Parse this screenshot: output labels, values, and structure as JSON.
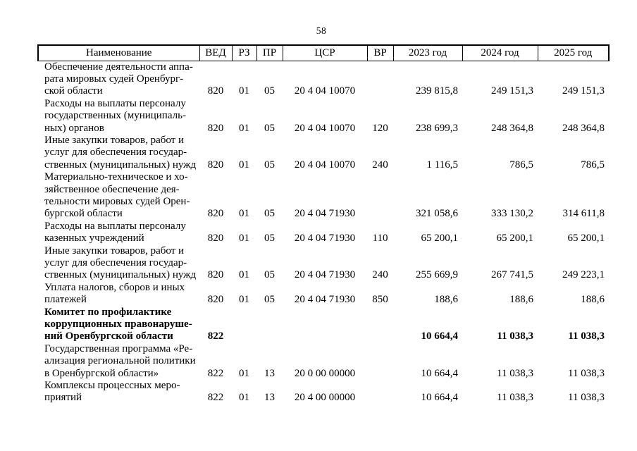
{
  "page": {
    "number": "58"
  },
  "colors": {
    "text": "#000000",
    "background": "#ffffff",
    "border": "#000000"
  },
  "table": {
    "headers": {
      "name": "Наименование",
      "ved": "ВЕД",
      "rz": "РЗ",
      "pr": "ПР",
      "csr": "ЦСР",
      "vr": "ВР",
      "y2023": "2023 год",
      "y2024": "2024 год",
      "y2025": "2025 год"
    },
    "rows": [
      {
        "name": "Обеспечение деятельности аппа-\nрата мировых судей Оренбург-\nской области",
        "ved": "820",
        "rz": "01",
        "pr": "05",
        "csr": "20 4 04 10070",
        "vr": "",
        "y2023": "239 815,8",
        "y2024": "249 151,3",
        "y2025": "249 151,3",
        "bold": false
      },
      {
        "name": "Расходы на выплаты персоналу\nгосударственных (муниципаль-\nных) органов",
        "ved": "820",
        "rz": "01",
        "pr": "05",
        "csr": "20 4 04 10070",
        "vr": "120",
        "y2023": "238 699,3",
        "y2024": "248 364,8",
        "y2025": "248 364,8",
        "bold": false
      },
      {
        "name": "Иные закупки товаров, работ и\nуслуг для обеспечения государ-\nственных (муниципальных) нужд",
        "ved": "820",
        "rz": "01",
        "pr": "05",
        "csr": "20 4 04 10070",
        "vr": "240",
        "y2023": "1 116,5",
        "y2024": "786,5",
        "y2025": "786,5",
        "bold": false
      },
      {
        "name": "Материально-техническое и хо-\nзяйственное обеспечение дея-\nтельности мировых судей Орен-\nбургской области",
        "ved": "820",
        "rz": "01",
        "pr": "05",
        "csr": "20 4 04 71930",
        "vr": "",
        "y2023": "321 058,6",
        "y2024": "333 130,2",
        "y2025": "314 611,8",
        "bold": false
      },
      {
        "name": "Расходы на выплаты персоналу\nказенных учреждений",
        "ved": "820",
        "rz": "01",
        "pr": "05",
        "csr": "20 4 04 71930",
        "vr": "110",
        "y2023": "65 200,1",
        "y2024": "65 200,1",
        "y2025": "65 200,1",
        "bold": false
      },
      {
        "name": "Иные закупки товаров, работ и\nуслуг для обеспечения государ-\nственных (муниципальных) нужд",
        "ved": "820",
        "rz": "01",
        "pr": "05",
        "csr": "20 4 04 71930",
        "vr": "240",
        "y2023": "255 669,9",
        "y2024": "267 741,5",
        "y2025": "249 223,1",
        "bold": false
      },
      {
        "name": "Уплата налогов, сборов и иных\nплатежей",
        "ved": "820",
        "rz": "01",
        "pr": "05",
        "csr": "20 4 04 71930",
        "vr": "850",
        "y2023": "188,6",
        "y2024": "188,6",
        "y2025": "188,6",
        "bold": false
      },
      {
        "name": "Комитет по профилактике\nкоррупционных правонаруше-\nний Оренбургской области",
        "ved": "822",
        "rz": "",
        "pr": "",
        "csr": "",
        "vr": "",
        "y2023": "10 664,4",
        "y2024": "11 038,3",
        "y2025": "11 038,3",
        "bold": true
      },
      {
        "name": "Государственная программа «Ре-\nализация региональной политики\nв Оренбургской области»",
        "ved": "822",
        "rz": "01",
        "pr": "13",
        "csr": "20 0 00 00000",
        "vr": "",
        "y2023": "10 664,4",
        "y2024": "11 038,3",
        "y2025": "11 038,3",
        "bold": false
      },
      {
        "name": "Комплексы процессных меро-\nприятий",
        "ved": "822",
        "rz": "01",
        "pr": "13",
        "csr": "20 4 00 00000",
        "vr": "",
        "y2023": "10 664,4",
        "y2024": "11 038,3",
        "y2025": "11 038,3",
        "bold": false
      }
    ]
  }
}
